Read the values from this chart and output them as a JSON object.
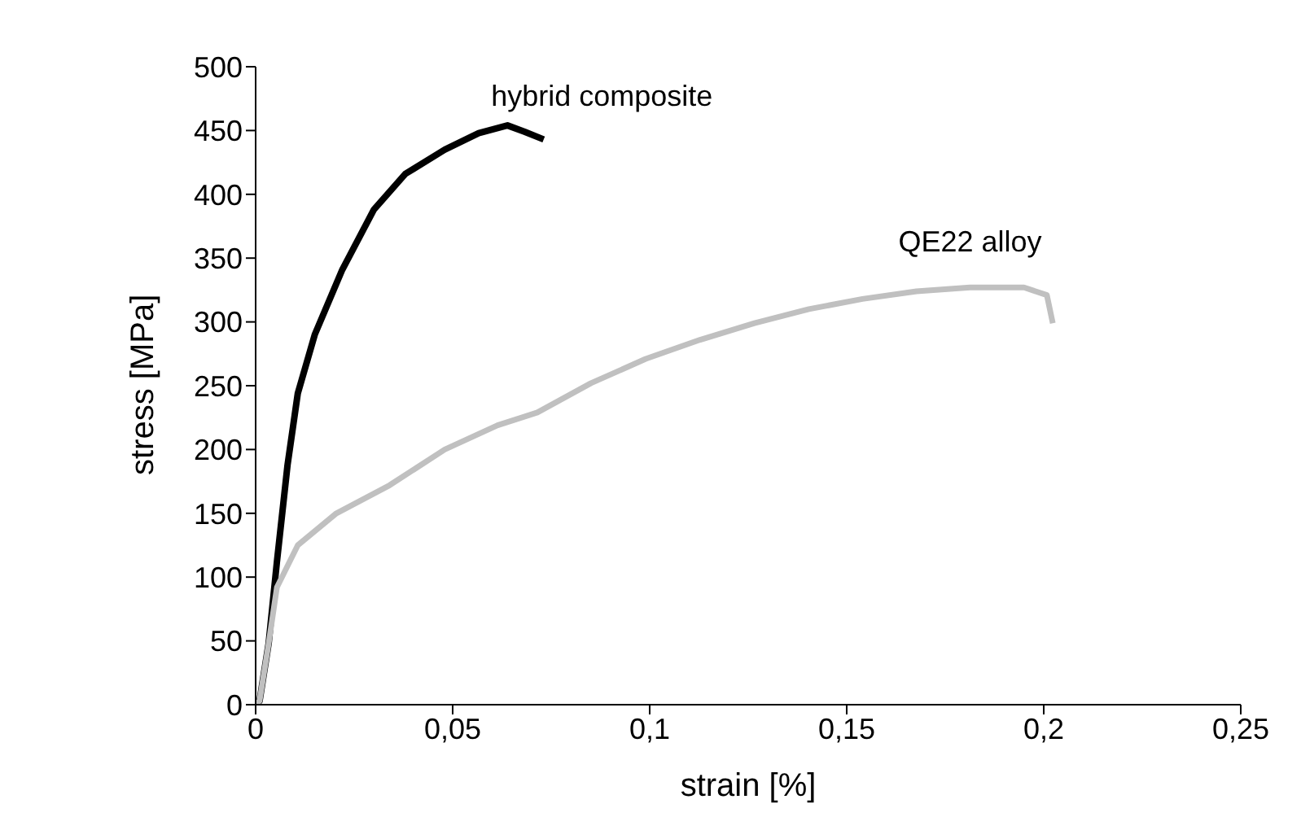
{
  "chart_data": {
    "type": "line",
    "xlabel": "strain [%]",
    "ylabel": "stress [MPa]",
    "xlim": [
      0,
      0.25
    ],
    "xticks": [
      0,
      {
        "value": 0.05,
        "label": "0,05"
      },
      {
        "value": 0.1,
        "label": "0,1"
      },
      {
        "value": 0.15,
        "label": "0,15"
      },
      {
        "value": 0.2,
        "label": "0,2"
      },
      {
        "value": 0.25,
        "label": "0,25"
      }
    ],
    "ylim": [
      0,
      500
    ],
    "yticks": [
      0,
      50,
      100,
      150,
      200,
      250,
      300,
      350,
      400,
      450,
      500
    ],
    "grid": false,
    "legend": false,
    "marker": "none",
    "line_style": "solid",
    "series": [
      {
        "name": "hybrid composite",
        "color": "#000000",
        "x": [
          0,
          0.001,
          0.0033,
          0.0054,
          0.0081,
          0.0107,
          0.015,
          0.022,
          0.03,
          0.038,
          0.048,
          0.0566,
          0.0639,
          0.0683,
          0.0731
        ],
        "values": [
          0,
          3,
          48,
          112,
          188,
          244,
          290,
          341,
          388,
          416,
          435,
          448,
          454,
          449,
          443
        ]
      },
      {
        "name": "QE22 alloy",
        "color": "#c0c0c0",
        "x": [
          0,
          0.001,
          0.0033,
          0.0054,
          0.0107,
          0.0205,
          0.034,
          0.048,
          0.0614,
          0.0715,
          0.0851,
          0.099,
          0.1128,
          0.1266,
          0.1404,
          0.154,
          0.1677,
          0.1813,
          0.195,
          0.2008,
          0.2023
        ],
        "values": [
          0,
          3,
          48,
          92,
          125,
          150,
          172,
          200,
          219,
          229,
          252,
          271,
          286,
          299,
          310,
          318,
          324,
          327,
          327,
          321,
          299
        ]
      }
    ]
  }
}
